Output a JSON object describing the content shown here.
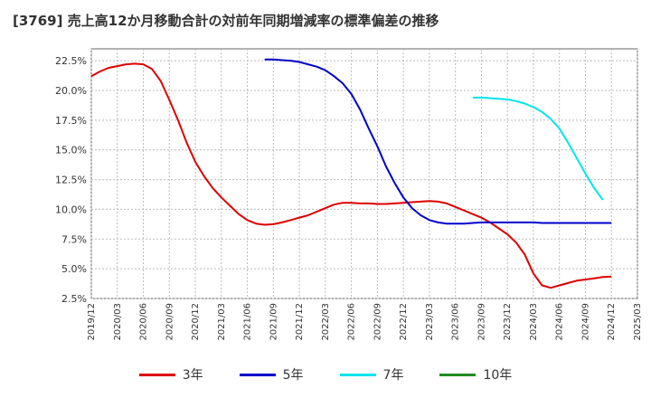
{
  "chart_data": {
    "type": "line",
    "title": "[3769]  売上高12か月移動合計の対前年同期増減率の標準偏差の推移",
    "ylim": [
      2.5,
      23.5
    ],
    "y_ticks": [
      "2.5%",
      "5.0%",
      "7.5%",
      "10.0%",
      "12.5%",
      "15.0%",
      "17.5%",
      "20.0%",
      "22.5%"
    ],
    "y_tick_values": [
      2.5,
      5.0,
      7.5,
      10.0,
      12.5,
      15.0,
      17.5,
      20.0,
      22.5
    ],
    "x_ticks": [
      "2019/12",
      "2020/03",
      "2020/06",
      "2020/09",
      "2020/12",
      "2021/03",
      "2021/06",
      "2021/09",
      "2021/12",
      "2022/03",
      "2022/06",
      "2022/09",
      "2022/12",
      "2023/03",
      "2023/06",
      "2023/09",
      "2023/12",
      "2024/03",
      "2024/06",
      "2024/09",
      "2024/12",
      "2025/03"
    ],
    "grid": true,
    "legend_position": "bottom",
    "series": [
      {
        "name": "3年",
        "color": "#dd0000",
        "points": [
          [
            "2019/12",
            21.2
          ],
          [
            "2020/01",
            21.6
          ],
          [
            "2020/02",
            21.9
          ],
          [
            "2020/03",
            22.05
          ],
          [
            "2020/04",
            22.2
          ],
          [
            "2020/05",
            22.25
          ],
          [
            "2020/06",
            22.2
          ],
          [
            "2020/07",
            21.8
          ],
          [
            "2020/08",
            20.8
          ],
          [
            "2020/09",
            19.2
          ],
          [
            "2020/10",
            17.5
          ],
          [
            "2020/11",
            15.6
          ],
          [
            "2020/12",
            14.0
          ],
          [
            "2021/01",
            12.8
          ],
          [
            "2021/02",
            11.8
          ],
          [
            "2021/03",
            11.0
          ],
          [
            "2021/04",
            10.3
          ],
          [
            "2021/05",
            9.6
          ],
          [
            "2021/06",
            9.1
          ],
          [
            "2021/07",
            8.8
          ],
          [
            "2021/08",
            8.7
          ],
          [
            "2021/09",
            8.75
          ],
          [
            "2021/10",
            8.9
          ],
          [
            "2021/11",
            9.1
          ],
          [
            "2021/12",
            9.3
          ],
          [
            "2022/01",
            9.5
          ],
          [
            "2022/02",
            9.8
          ],
          [
            "2022/03",
            10.1
          ],
          [
            "2022/04",
            10.4
          ],
          [
            "2022/05",
            10.55
          ],
          [
            "2022/06",
            10.55
          ],
          [
            "2022/07",
            10.5
          ],
          [
            "2022/08",
            10.5
          ],
          [
            "2022/09",
            10.45
          ],
          [
            "2022/10",
            10.45
          ],
          [
            "2022/11",
            10.5
          ],
          [
            "2022/12",
            10.55
          ],
          [
            "2023/01",
            10.6
          ],
          [
            "2023/02",
            10.65
          ],
          [
            "2023/03",
            10.7
          ],
          [
            "2023/04",
            10.65
          ],
          [
            "2023/05",
            10.5
          ],
          [
            "2023/06",
            10.2
          ],
          [
            "2023/07",
            9.9
          ],
          [
            "2023/08",
            9.6
          ],
          [
            "2023/09",
            9.3
          ],
          [
            "2023/10",
            8.9
          ],
          [
            "2023/11",
            8.4
          ],
          [
            "2023/12",
            7.9
          ],
          [
            "2024/01",
            7.2
          ],
          [
            "2024/02",
            6.2
          ],
          [
            "2024/03",
            4.6
          ],
          [
            "2024/04",
            3.6
          ],
          [
            "2024/05",
            3.4
          ],
          [
            "2024/06",
            3.6
          ],
          [
            "2024/07",
            3.8
          ],
          [
            "2024/08",
            4.0
          ],
          [
            "2024/09",
            4.1
          ],
          [
            "2024/10",
            4.2
          ],
          [
            "2024/11",
            4.3
          ],
          [
            "2024/12",
            4.35
          ]
        ]
      },
      {
        "name": "5年",
        "color": "#0000cc",
        "points": [
          [
            "2021/08",
            22.6
          ],
          [
            "2021/09",
            22.6
          ],
          [
            "2021/10",
            22.55
          ],
          [
            "2021/11",
            22.5
          ],
          [
            "2021/12",
            22.4
          ],
          [
            "2022/01",
            22.2
          ],
          [
            "2022/02",
            22.0
          ],
          [
            "2022/03",
            21.7
          ],
          [
            "2022/04",
            21.2
          ],
          [
            "2022/05",
            20.6
          ],
          [
            "2022/06",
            19.7
          ],
          [
            "2022/07",
            18.4
          ],
          [
            "2022/08",
            16.8
          ],
          [
            "2022/09",
            15.3
          ],
          [
            "2022/10",
            13.6
          ],
          [
            "2022/11",
            12.2
          ],
          [
            "2022/12",
            11.0
          ],
          [
            "2023/01",
            10.1
          ],
          [
            "2023/02",
            9.5
          ],
          [
            "2023/03",
            9.1
          ],
          [
            "2023/04",
            8.9
          ],
          [
            "2023/05",
            8.8
          ],
          [
            "2023/06",
            8.8
          ],
          [
            "2023/07",
            8.8
          ],
          [
            "2023/08",
            8.85
          ],
          [
            "2023/09",
            8.9
          ],
          [
            "2023/10",
            8.9
          ],
          [
            "2023/11",
            8.9
          ],
          [
            "2023/12",
            8.9
          ],
          [
            "2024/01",
            8.9
          ],
          [
            "2024/02",
            8.9
          ],
          [
            "2024/03",
            8.9
          ],
          [
            "2024/04",
            8.85
          ],
          [
            "2024/05",
            8.85
          ],
          [
            "2024/06",
            8.85
          ],
          [
            "2024/07",
            8.85
          ],
          [
            "2024/08",
            8.85
          ],
          [
            "2024/09",
            8.85
          ],
          [
            "2024/10",
            8.85
          ],
          [
            "2024/11",
            8.85
          ],
          [
            "2024/12",
            8.85
          ]
        ]
      },
      {
        "name": "7年",
        "color": "#00e5ee",
        "points": [
          [
            "2023/08",
            19.4
          ],
          [
            "2023/09",
            19.4
          ],
          [
            "2023/10",
            19.35
          ],
          [
            "2023/11",
            19.3
          ],
          [
            "2023/12",
            19.25
          ],
          [
            "2024/01",
            19.1
          ],
          [
            "2024/02",
            18.9
          ],
          [
            "2024/03",
            18.6
          ],
          [
            "2024/04",
            18.2
          ],
          [
            "2024/05",
            17.6
          ],
          [
            "2024/06",
            16.8
          ],
          [
            "2024/07",
            15.6
          ],
          [
            "2024/08",
            14.3
          ],
          [
            "2024/09",
            13.0
          ],
          [
            "2024/10",
            11.8
          ],
          [
            "2024/11",
            10.8
          ]
        ]
      },
      {
        "name": "10年",
        "color": "#228b22",
        "points": []
      }
    ]
  }
}
